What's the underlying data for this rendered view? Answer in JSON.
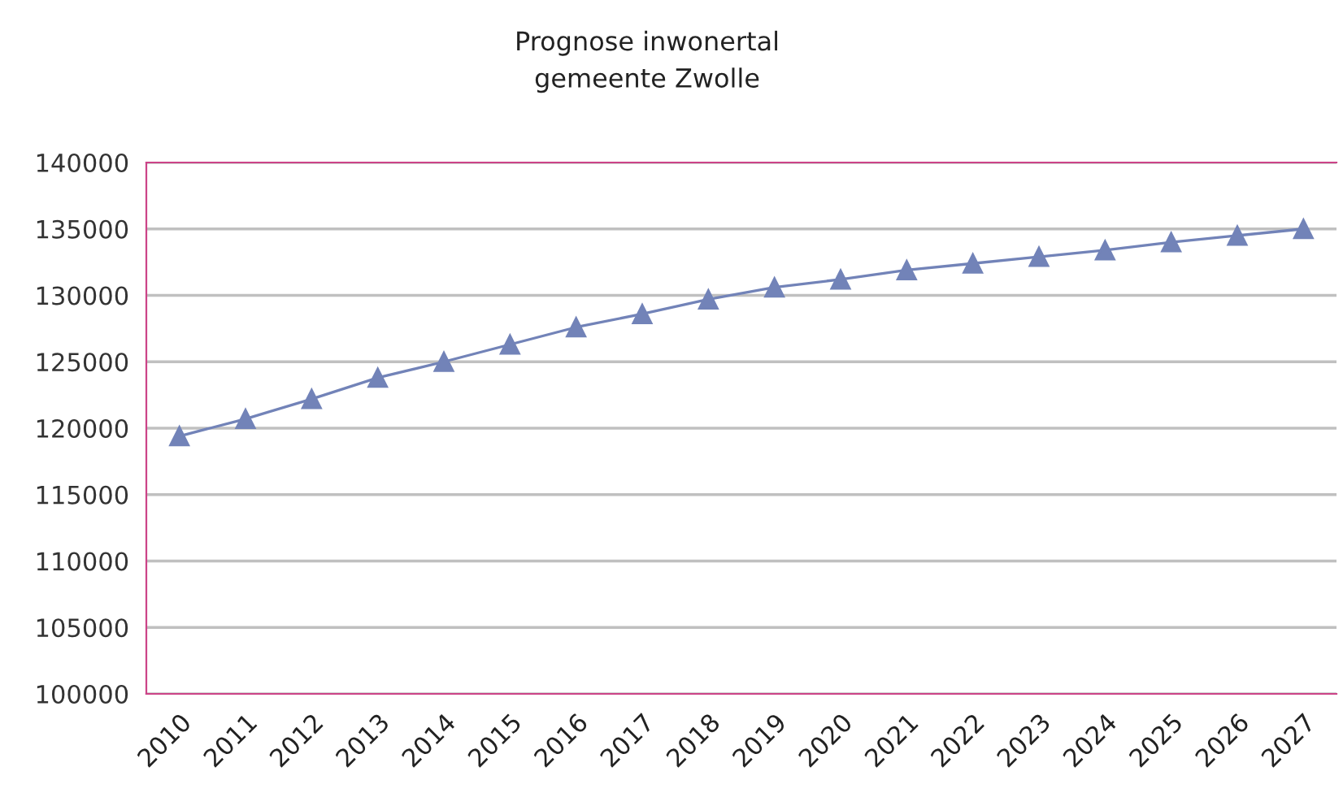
{
  "chart_data": {
    "type": "line",
    "title": "Prognose inwonertal\ngemeente Zwolle",
    "categories": [
      "2010",
      "2011",
      "2012",
      "2013",
      "2014",
      "2015",
      "2016",
      "2017",
      "2018",
      "2019",
      "2020",
      "2021",
      "2022",
      "2023",
      "2024",
      "2025",
      "2026",
      "2027"
    ],
    "series": [
      {
        "color": "#7283b8",
        "values": [
          119400,
          120700,
          122200,
          123800,
          125000,
          126300,
          127600,
          128600,
          129700,
          130600,
          131200,
          131900,
          132400,
          132900,
          133400,
          134000,
          134500,
          135000
        ]
      }
    ],
    "ylim": [
      100000,
      140000
    ],
    "yticks": [
      100000,
      105000,
      110000,
      115000,
      120000,
      125000,
      130000,
      135000,
      140000
    ],
    "grid": "y",
    "marker": "triangle",
    "line_style": "solid"
  }
}
